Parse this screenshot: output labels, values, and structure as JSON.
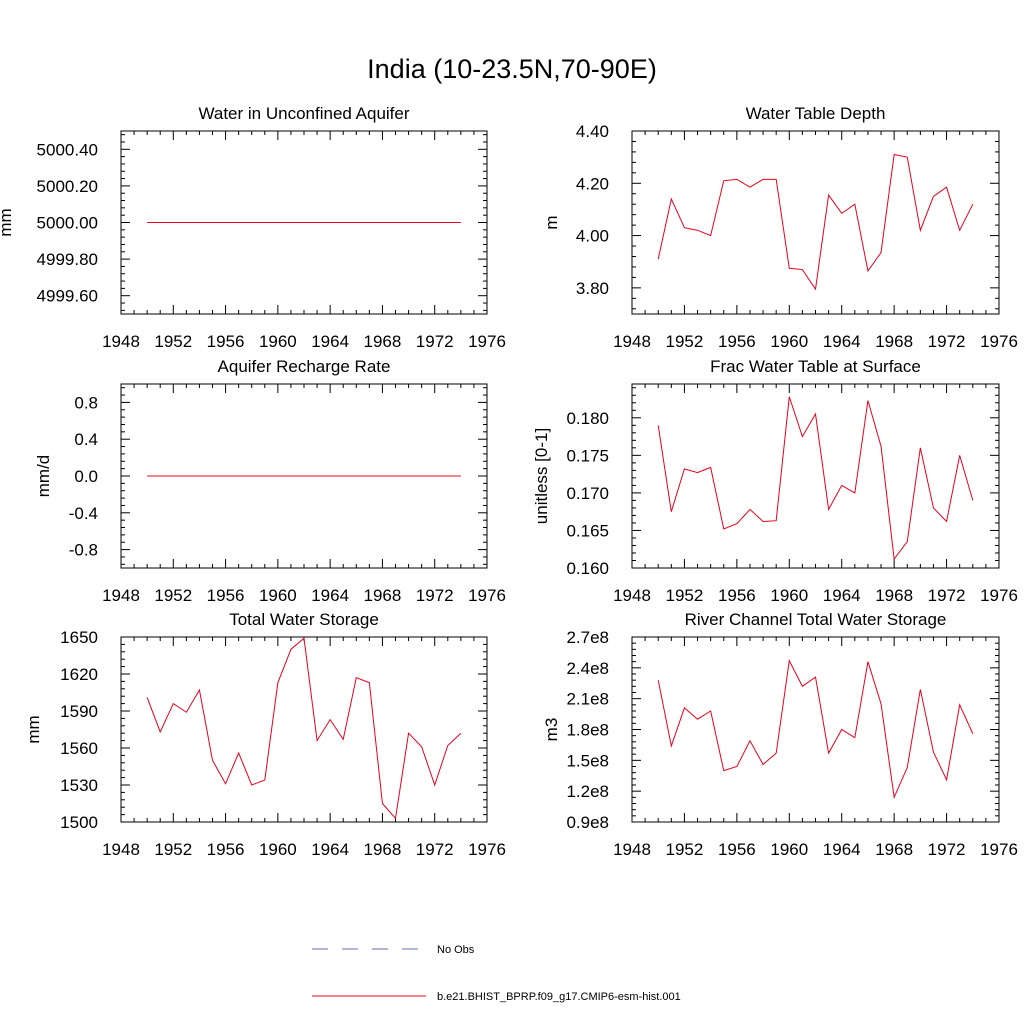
{
  "figure": {
    "title": "India (10-23.5N,70-90E)"
  },
  "colors": {
    "model_line": "#e8001c",
    "obs_line": "#6b6bb5",
    "axis": "#000000"
  },
  "legend": {
    "entries": [
      {
        "label": "No Obs",
        "style": "dashed",
        "color": "#6b6bb5"
      },
      {
        "label": "b.e21.BHIST_BPRP.f09_g17.CMIP6-esm-hist.001",
        "style": "solid",
        "color": "#e8001c"
      }
    ]
  },
  "chart_data": [
    {
      "type": "line",
      "title": "Water in Unconfined Aquifer",
      "ylabel": "mm",
      "xlim": [
        1948,
        1976
      ],
      "ylim": [
        4999.5,
        5000.5
      ],
      "xticks": [
        1948,
        1952,
        1956,
        1960,
        1964,
        1968,
        1972,
        1976
      ],
      "yticks": [
        4999.6,
        4999.8,
        5000.0,
        5000.2,
        5000.4
      ],
      "ytick_labels": [
        "4999.60",
        "4999.80",
        "5000.00",
        "5000.20",
        "5000.40"
      ],
      "x": [
        1950,
        1951,
        1952,
        1953,
        1954,
        1955,
        1956,
        1957,
        1958,
        1959,
        1960,
        1961,
        1962,
        1963,
        1964,
        1965,
        1966,
        1967,
        1968,
        1969,
        1970,
        1971,
        1972,
        1973,
        1974
      ],
      "series": [
        {
          "values": [
            5000,
            5000,
            5000,
            5000,
            5000,
            5000,
            5000,
            5000,
            5000,
            5000,
            5000,
            5000,
            5000,
            5000,
            5000,
            5000,
            5000,
            5000,
            5000,
            5000,
            5000,
            5000,
            5000,
            5000,
            5000
          ]
        }
      ]
    },
    {
      "type": "line",
      "title": "Water Table Depth",
      "ylabel": "m",
      "xlim": [
        1948,
        1976
      ],
      "ylim": [
        3.7,
        4.4
      ],
      "xticks": [
        1948,
        1952,
        1956,
        1960,
        1964,
        1968,
        1972,
        1976
      ],
      "yticks": [
        3.8,
        4.0,
        4.2,
        4.4
      ],
      "ytick_labels": [
        "3.80",
        "4.00",
        "4.20",
        "4.40"
      ],
      "x": [
        1950,
        1951,
        1952,
        1953,
        1954,
        1955,
        1956,
        1957,
        1958,
        1959,
        1960,
        1961,
        1962,
        1963,
        1964,
        1965,
        1966,
        1967,
        1968,
        1969,
        1970,
        1971,
        1972,
        1973,
        1974
      ],
      "series": [
        {
          "values": [
            3.91,
            4.14,
            4.03,
            4.02,
            4.0,
            4.21,
            4.215,
            4.185,
            4.215,
            4.215,
            3.875,
            3.87,
            3.795,
            4.155,
            4.085,
            4.12,
            3.865,
            3.935,
            4.31,
            4.3,
            4.02,
            4.15,
            4.185,
            4.02,
            4.12
          ]
        }
      ]
    },
    {
      "type": "line",
      "title": "Aquifer Recharge Rate",
      "ylabel": "mm/d",
      "xlim": [
        1948,
        1976
      ],
      "ylim": [
        -1.0,
        1.0
      ],
      "xticks": [
        1948,
        1952,
        1956,
        1960,
        1964,
        1968,
        1972,
        1976
      ],
      "yticks": [
        -0.8,
        -0.4,
        0.0,
        0.4,
        0.8
      ],
      "ytick_labels": [
        "-0.8",
        "-0.4",
        "0.0",
        "0.4",
        "0.8"
      ],
      "x": [
        1950,
        1951,
        1952,
        1953,
        1954,
        1955,
        1956,
        1957,
        1958,
        1959,
        1960,
        1961,
        1962,
        1963,
        1964,
        1965,
        1966,
        1967,
        1968,
        1969,
        1970,
        1971,
        1972,
        1973,
        1974
      ],
      "series": [
        {
          "values": [
            0,
            0,
            0,
            0,
            0,
            0,
            0,
            0,
            0,
            0,
            0,
            0,
            0,
            0,
            0,
            0,
            0,
            0,
            0,
            0,
            0,
            0,
            0,
            0,
            0
          ]
        }
      ]
    },
    {
      "type": "line",
      "title": "Frac Water Table at Surface",
      "ylabel": "unitless [0-1]",
      "xlim": [
        1948,
        1976
      ],
      "ylim": [
        0.16,
        0.1845
      ],
      "xticks": [
        1948,
        1952,
        1956,
        1960,
        1964,
        1968,
        1972,
        1976
      ],
      "yticks": [
        0.16,
        0.165,
        0.17,
        0.175,
        0.18
      ],
      "ytick_labels": [
        "0.160",
        "0.165",
        "0.170",
        "0.175",
        "0.180"
      ],
      "x": [
        1950,
        1951,
        1952,
        1953,
        1954,
        1955,
        1956,
        1957,
        1958,
        1959,
        1960,
        1961,
        1962,
        1963,
        1964,
        1965,
        1966,
        1967,
        1968,
        1969,
        1970,
        1971,
        1972,
        1973,
        1974
      ],
      "series": [
        {
          "values": [
            0.179,
            0.1675,
            0.1732,
            0.1727,
            0.1734,
            0.1652,
            0.1659,
            0.1678,
            0.1662,
            0.1663,
            0.1828,
            0.1775,
            0.1805,
            0.1678,
            0.171,
            0.17,
            0.1823,
            0.1762,
            0.1612,
            0.1635,
            0.176,
            0.168,
            0.1662,
            0.175,
            0.169
          ]
        }
      ]
    },
    {
      "type": "line",
      "title": "Total Water Storage",
      "ylabel": "mm",
      "xlim": [
        1948,
        1976
      ],
      "ylim": [
        1500,
        1650
      ],
      "xticks": [
        1948,
        1952,
        1956,
        1960,
        1964,
        1968,
        1972,
        1976
      ],
      "yticks": [
        1500,
        1530,
        1560,
        1590,
        1620,
        1650
      ],
      "ytick_labels": [
        "1500",
        "1530",
        "1560",
        "1590",
        "1620",
        "1650"
      ],
      "x": [
        1950,
        1951,
        1952,
        1953,
        1954,
        1955,
        1956,
        1957,
        1958,
        1959,
        1960,
        1961,
        1962,
        1963,
        1964,
        1965,
        1966,
        1967,
        1968,
        1969,
        1970,
        1971,
        1972,
        1973,
        1974
      ],
      "series": [
        {
          "values": [
            1601,
            1573,
            1596,
            1589,
            1607,
            1550,
            1531,
            1556,
            1530,
            1534,
            1613,
            1640,
            1649,
            1566,
            1583,
            1567,
            1617,
            1613,
            1515,
            1503,
            1572,
            1561,
            1530,
            1562,
            1572
          ]
        }
      ]
    },
    {
      "type": "line",
      "title": "River Channel Total Water Storage",
      "ylabel": "m3",
      "xlim": [
        1948,
        1976
      ],
      "ylim": [
        0.9,
        2.7
      ],
      "xticks": [
        1948,
        1952,
        1956,
        1960,
        1964,
        1968,
        1972,
        1976
      ],
      "yticks": [
        0.9,
        1.2,
        1.5,
        1.8,
        2.1,
        2.4,
        2.7
      ],
      "ytick_labels": [
        "0.9e8",
        "1.2e8",
        "1.5e8",
        "1.8e8",
        "2.1e8",
        "2.4e8",
        "2.7e8"
      ],
      "y_scale_note": "values in units of 1e8 m3",
      "x": [
        1950,
        1951,
        1952,
        1953,
        1954,
        1955,
        1956,
        1957,
        1958,
        1959,
        1960,
        1961,
        1962,
        1963,
        1964,
        1965,
        1966,
        1967,
        1968,
        1969,
        1970,
        1971,
        1972,
        1973,
        1974
      ],
      "series": [
        {
          "values": [
            2.28,
            1.64,
            2.01,
            1.9,
            1.98,
            1.4,
            1.44,
            1.69,
            1.46,
            1.57,
            2.47,
            2.22,
            2.31,
            1.57,
            1.8,
            1.72,
            2.46,
            2.05,
            1.14,
            1.43,
            2.19,
            1.58,
            1.31,
            2.04,
            1.76
          ]
        }
      ]
    }
  ]
}
